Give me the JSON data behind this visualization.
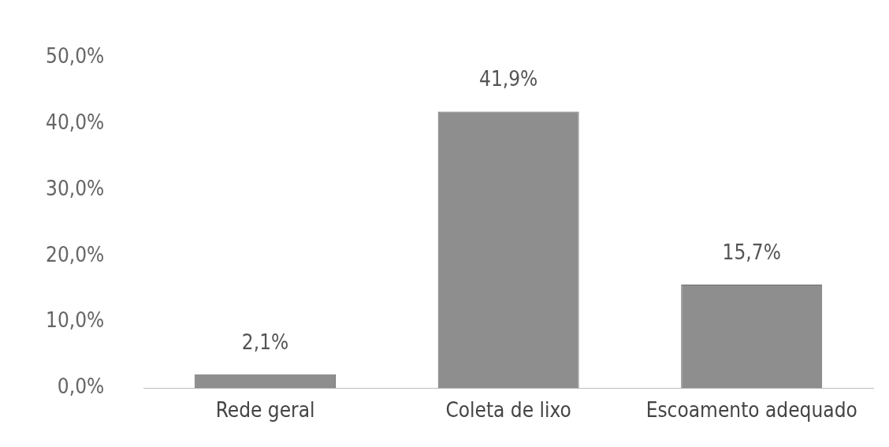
{
  "chart_data": {
    "type": "bar",
    "categories": [
      "Rede geral",
      "Coleta de lixo",
      "Escoamento adequado"
    ],
    "values": [
      2.1,
      41.9,
      15.7
    ],
    "value_labels": [
      "2,1%",
      "41,9%",
      "15,7%"
    ],
    "color": "#8e8e8e",
    "ylim": [
      0,
      50
    ],
    "yticks": [
      {
        "value": 0,
        "label": "0,0%"
      },
      {
        "value": 10,
        "label": "10,0%"
      },
      {
        "value": 20,
        "label": "20,0%"
      },
      {
        "value": 30,
        "label": "30,0%"
      },
      {
        "value": 40,
        "label": "40,0%"
      },
      {
        "value": 50,
        "label": "50,0%"
      }
    ],
    "grid": false,
    "legend": false
  }
}
